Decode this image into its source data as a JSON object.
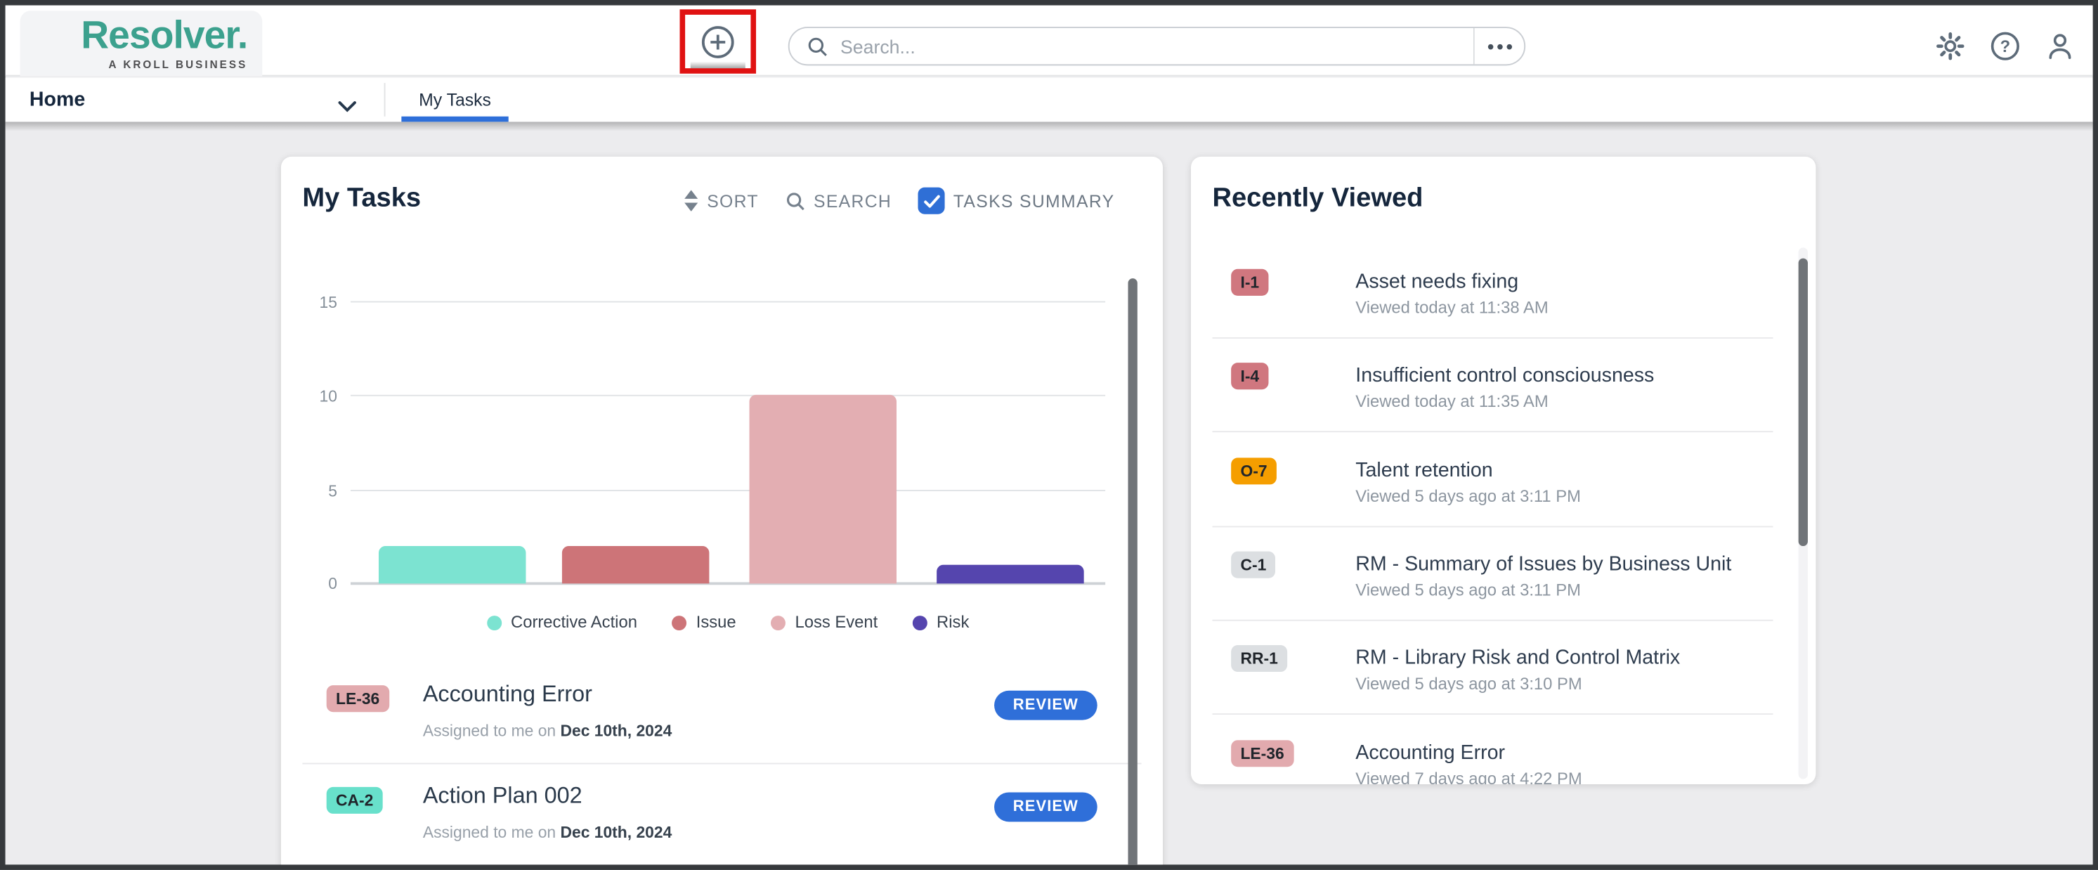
{
  "header": {
    "brand": "Resolver.",
    "tagline": "A KROLL BUSINESS",
    "search_placeholder": "Search...",
    "icons": [
      "plus-create",
      "search",
      "more-options",
      "settings-gear",
      "help",
      "user-account"
    ]
  },
  "nav": {
    "home": "Home",
    "active_tab": "My Tasks"
  },
  "tasks_panel": {
    "title": "My Tasks",
    "sort_label": "SORT",
    "search_label": "SEARCH",
    "summary_label": "TASKS SUMMARY",
    "summary_checked": true,
    "chart_data": {
      "type": "bar",
      "categories": [
        "Corrective Action",
        "Issue",
        "Loss Event",
        "Risk"
      ],
      "values": [
        2,
        2,
        10,
        1
      ],
      "colors": [
        "#7ce3d1",
        "#cd7478",
        "#e3aeb2",
        "#5545ae"
      ],
      "title": "",
      "xlabel": "",
      "ylabel": "",
      "ylim": [
        0,
        15
      ],
      "yticks": [
        0,
        5,
        10,
        15
      ],
      "grid": "horizontal",
      "legend_position": "bottom"
    },
    "tasks": [
      {
        "badge": "LE-36",
        "badge_color": "#e2aaae",
        "title": "Accounting Error",
        "assigned_prefix": "Assigned to me on ",
        "assigned_date": "Dec 10th, 2024",
        "action_label": "REVIEW"
      },
      {
        "badge": "CA-2",
        "badge_color": "#68e0cb",
        "title": "Action Plan 002",
        "assigned_prefix": "Assigned to me on ",
        "assigned_date": "Dec 10th, 2024",
        "action_label": "REVIEW"
      }
    ]
  },
  "recent_panel": {
    "title": "Recently Viewed",
    "items": [
      {
        "badge": "I-1",
        "badge_color": "#d0777f",
        "title": "Asset needs fixing",
        "subtitle": "Viewed today at 11:38 AM"
      },
      {
        "badge": "I-4",
        "badge_color": "#d0777f",
        "title": "Insufficient control consciousness",
        "subtitle": "Viewed today at 11:35 AM"
      },
      {
        "badge": "O-7",
        "badge_color": "#f59e00",
        "title": "Talent retention",
        "subtitle": "Viewed 5 days ago at 3:11 PM"
      },
      {
        "badge": "C-1",
        "badge_color": "#dcdfe2",
        "title": "RM - Summary of Issues by Business Unit",
        "subtitle": "Viewed 5 days ago at 3:11 PM"
      },
      {
        "badge": "RR-1",
        "badge_color": "#dcdfe2",
        "title": "RM - Library Risk and Control Matrix",
        "subtitle": "Viewed 5 days ago at 3:10 PM"
      },
      {
        "badge": "LE-36",
        "badge_color": "#e2aaae",
        "title": "Accounting Error",
        "subtitle": "Viewed 7 days ago at 4:22 PM"
      }
    ]
  },
  "colors": {
    "accent_blue": "#2e6fd9",
    "annotation_red": "#e01212",
    "brand_teal": "#3ca18e",
    "icon_slate": "#5d6b79",
    "heading_navy": "#15263c"
  }
}
